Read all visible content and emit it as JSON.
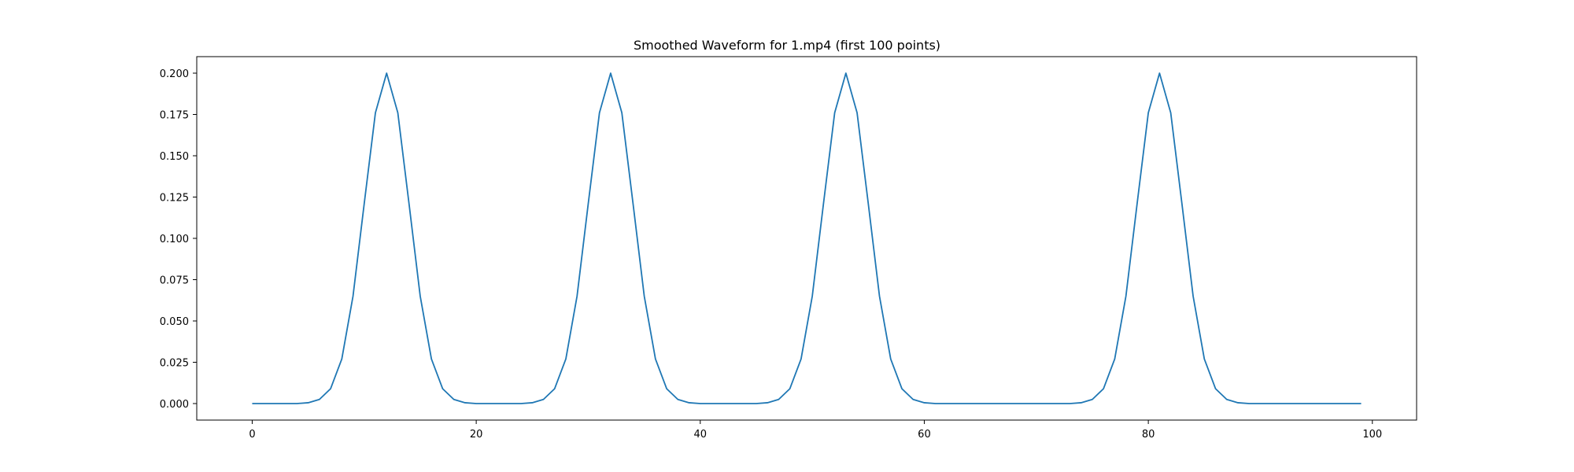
{
  "chart_data": {
    "type": "line",
    "title": "Smoothed Waveform for 1.mp4 (first 100 points)",
    "xlabel": "",
    "ylabel": "",
    "xlim": [
      -4.95,
      103.95
    ],
    "ylim": [
      -0.01,
      0.21
    ],
    "xticks": [
      0,
      20,
      40,
      60,
      80,
      100
    ],
    "xtick_labels": [
      "0",
      "20",
      "40",
      "60",
      "80",
      "100"
    ],
    "yticks": [
      0.0,
      0.025,
      0.05,
      0.075,
      0.1,
      0.125,
      0.15,
      0.175,
      0.2
    ],
    "ytick_labels": [
      "0.000",
      "0.025",
      "0.050",
      "0.075",
      "0.100",
      "0.125",
      "0.150",
      "0.175",
      "0.200"
    ],
    "grid": false,
    "series": [
      {
        "color": "#1f77b4",
        "x": [
          0,
          1,
          2,
          3,
          4,
          5,
          6,
          7,
          8,
          9,
          10,
          11,
          12,
          13,
          14,
          15,
          16,
          17,
          18,
          19,
          20,
          21,
          22,
          23,
          24,
          25,
          26,
          27,
          28,
          29,
          30,
          31,
          32,
          33,
          34,
          35,
          36,
          37,
          38,
          39,
          40,
          41,
          42,
          43,
          44,
          45,
          46,
          47,
          48,
          49,
          50,
          51,
          52,
          53,
          54,
          55,
          56,
          57,
          58,
          59,
          60,
          61,
          62,
          63,
          64,
          65,
          66,
          67,
          68,
          69,
          70,
          71,
          72,
          73,
          74,
          75,
          76,
          77,
          78,
          79,
          80,
          81,
          82,
          83,
          84,
          85,
          86,
          87,
          88,
          89,
          90,
          91,
          92,
          93,
          94,
          95,
          96,
          97,
          98,
          99
        ],
        "y": [
          0.0,
          0.0,
          0.0,
          0.0,
          0.0,
          0.0005,
          0.0025,
          0.009,
          0.027,
          0.065,
          0.121,
          0.176,
          0.2,
          0.176,
          0.121,
          0.065,
          0.027,
          0.009,
          0.0025,
          0.0005,
          0.0,
          0.0,
          0.0,
          0.0,
          0.0,
          0.0005,
          0.0025,
          0.009,
          0.027,
          0.065,
          0.121,
          0.176,
          0.2,
          0.176,
          0.121,
          0.065,
          0.027,
          0.009,
          0.0025,
          0.0005,
          0.0,
          0.0,
          0.0,
          0.0,
          0.0,
          0.0,
          0.0005,
          0.0025,
          0.009,
          0.027,
          0.065,
          0.121,
          0.176,
          0.2,
          0.176,
          0.121,
          0.065,
          0.027,
          0.009,
          0.0025,
          0.0005,
          0.0,
          0.0,
          0.0,
          0.0,
          0.0,
          0.0,
          0.0,
          0.0,
          0.0,
          0.0,
          0.0,
          0.0,
          0.0,
          0.0005,
          0.0025,
          0.009,
          0.027,
          0.065,
          0.121,
          0.176,
          0.2,
          0.176,
          0.121,
          0.065,
          0.027,
          0.009,
          0.0025,
          0.0005,
          0.0,
          0.0,
          0.0,
          0.0,
          0.0,
          0.0,
          0.0,
          0.0,
          0.0,
          0.0,
          0.0
        ]
      }
    ]
  }
}
